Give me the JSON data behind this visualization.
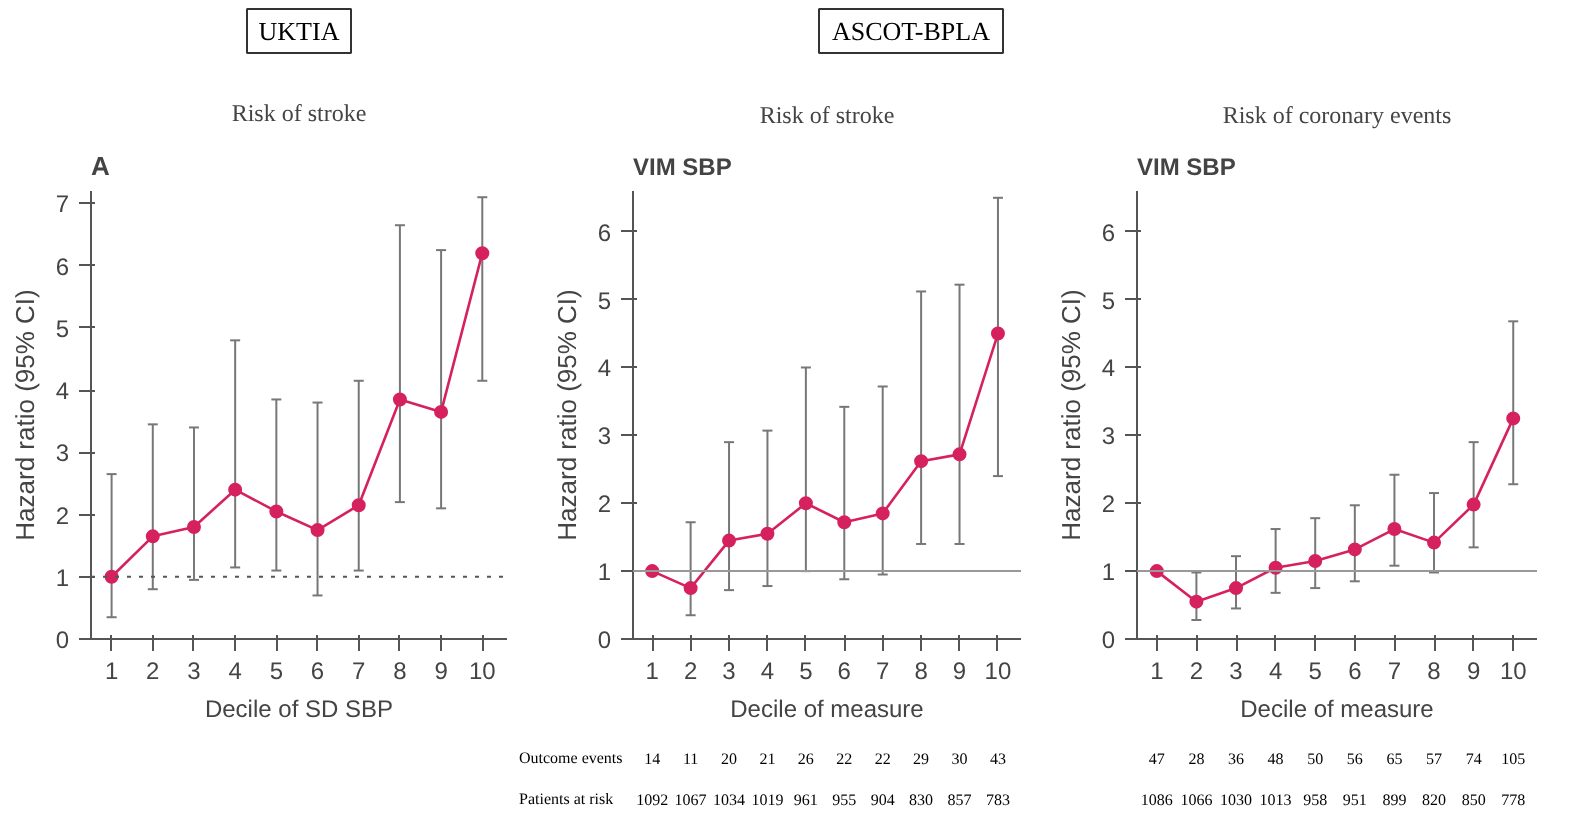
{
  "chart_data": [
    {
      "type": "line",
      "title": "Risk of stroke",
      "xlabel": "Decile of SD SBP",
      "ylabel": "Hazard ratio (95% CI)",
      "x": [
        1,
        2,
        3,
        4,
        5,
        6,
        7,
        8,
        9,
        10
      ],
      "xlim": [
        0.5,
        10.6
      ],
      "xticks": [
        1,
        2,
        3,
        4,
        5,
        6,
        7,
        8,
        9,
        10
      ],
      "ylim": [
        0,
        7.2
      ],
      "yticks": [
        0,
        1,
        2,
        3,
        4,
        5,
        6,
        7
      ],
      "grid": false,
      "marker": "circle",
      "line_style": "solid",
      "series": [
        {
          "color": "#d6215f",
          "values": [
            1.0,
            1.65,
            1.8,
            2.4,
            2.05,
            1.75,
            2.15,
            3.85,
            3.65,
            6.2
          ],
          "errors": [
            [
              0.35,
              2.65
            ],
            [
              0.8,
              3.45
            ],
            [
              0.95,
              3.4
            ],
            [
              1.15,
              4.8
            ],
            [
              1.1,
              3.85
            ],
            [
              0.7,
              3.8
            ],
            [
              1.1,
              4.15
            ],
            [
              2.2,
              6.65
            ],
            [
              2.1,
              6.25
            ],
            [
              4.15,
              7.1
            ]
          ]
        }
      ],
      "ref_lines": [
        {
          "axis": "y",
          "value": 1,
          "line_style": "dotted",
          "color": "#555555"
        }
      ],
      "annotations": [
        "UKTIA",
        "A"
      ]
    },
    {
      "type": "line",
      "title": "Risk of stroke",
      "subtitle": "VIM SBP",
      "xlabel": "Decile of measure",
      "ylabel": "Hazard ratio (95% CI)",
      "x": [
        1,
        2,
        3,
        4,
        5,
        6,
        7,
        8,
        9,
        10
      ],
      "xlim": [
        0.5,
        10.6
      ],
      "xticks": [
        1,
        2,
        3,
        4,
        5,
        6,
        7,
        8,
        9,
        10
      ],
      "ylim": [
        0,
        6.6
      ],
      "yticks": [
        0,
        1,
        2,
        3,
        4,
        5,
        6
      ],
      "grid": false,
      "marker": "circle",
      "line_style": "solid",
      "series": [
        {
          "color": "#d6215f",
          "values": [
            1.0,
            0.75,
            1.45,
            1.55,
            2.0,
            1.72,
            1.85,
            2.62,
            2.72,
            4.5
          ],
          "errors": [
            null,
            [
              0.35,
              1.72
            ],
            [
              0.72,
              2.9
            ],
            [
              0.78,
              3.07
            ],
            [
              1.0,
              4.0
            ],
            [
              0.88,
              3.42
            ],
            [
              0.95,
              3.72
            ],
            [
              1.4,
              5.12
            ],
            [
              1.4,
              5.22
            ],
            [
              2.4,
              6.5
            ]
          ]
        }
      ],
      "ref_lines": [
        {
          "axis": "y",
          "value": 1,
          "line_style": "solid",
          "color": "#999999"
        }
      ],
      "annotations": [
        "ASCOT-BPLA",
        "Outcome events",
        "Patients at risk",
        "14 11 20 21 26 22 22 29 30 43",
        "1092 1067 1034 1019 961 955 904 830 857 783"
      ]
    },
    {
      "type": "line",
      "title": "Risk of coronary events",
      "subtitle": "VIM SBP",
      "xlabel": "Decile of measure",
      "ylabel": "Hazard ratio (95% CI)",
      "x": [
        1,
        2,
        3,
        4,
        5,
        6,
        7,
        8,
        9,
        10
      ],
      "xlim": [
        0.5,
        10.6
      ],
      "xticks": [
        1,
        2,
        3,
        4,
        5,
        6,
        7,
        8,
        9,
        10
      ],
      "ylim": [
        0,
        6.6
      ],
      "yticks": [
        0,
        1,
        2,
        3,
        4,
        5,
        6
      ],
      "grid": false,
      "marker": "circle",
      "line_style": "solid",
      "series": [
        {
          "color": "#d6215f",
          "values": [
            1.0,
            0.55,
            0.75,
            1.05,
            1.15,
            1.32,
            1.62,
            1.42,
            1.98,
            3.25
          ],
          "errors": [
            null,
            [
              0.28,
              0.98
            ],
            [
              0.45,
              1.22
            ],
            [
              0.68,
              1.62
            ],
            [
              0.75,
              1.78
            ],
            [
              0.85,
              1.97
            ],
            [
              1.08,
              2.42
            ],
            [
              0.98,
              2.15
            ],
            [
              1.35,
              2.9
            ],
            [
              2.28,
              4.68
            ]
          ]
        }
      ],
      "ref_lines": [
        {
          "axis": "y",
          "value": 1,
          "line_style": "solid",
          "color": "#999999"
        }
      ],
      "annotations": [
        "47 28 36 48 50 56 65 57 74 105",
        "1086 1066 1030 1013 958 951 899 820 850 778"
      ]
    }
  ]
}
